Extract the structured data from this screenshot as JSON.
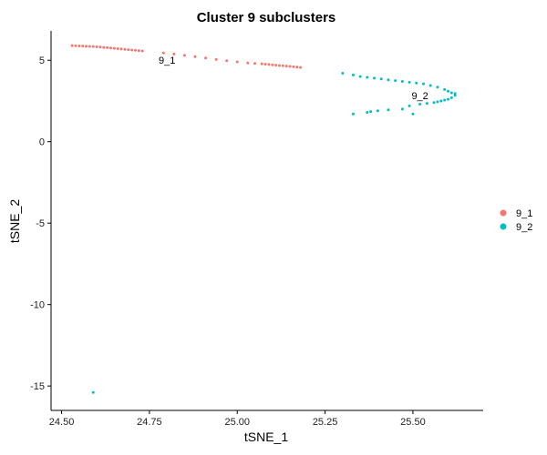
{
  "chart_data": {
    "type": "scatter",
    "title": "Cluster 9  subclusters",
    "xlabel": "tSNE_1",
    "ylabel": "tSNE_2",
    "xlim": [
      24.47,
      25.7
    ],
    "ylim": [
      -16.5,
      6.8
    ],
    "x_ticks": [
      24.5,
      24.75,
      25.0,
      25.25,
      25.5
    ],
    "x_tick_labels": [
      "24.50",
      "24.75",
      "25.00",
      "25.25",
      "25.50"
    ],
    "y_ticks": [
      5,
      0,
      -5,
      -10,
      -15
    ],
    "y_tick_labels": [
      "5",
      "0",
      "-5",
      "-10",
      "-15"
    ],
    "grid": false,
    "legend_position": "right",
    "series": [
      {
        "name": "9_1",
        "color": "#F8766D",
        "label_at": [
          24.8,
          4.8
        ],
        "x": [
          24.53,
          24.54,
          24.55,
          24.56,
          24.57,
          24.58,
          24.59,
          24.6,
          24.61,
          24.62,
          24.63,
          24.64,
          24.65,
          24.66,
          24.67,
          24.68,
          24.69,
          24.7,
          24.71,
          24.72,
          24.73,
          24.79,
          24.82,
          24.85,
          24.88,
          24.91,
          24.94,
          24.97,
          25.0,
          25.03,
          25.05,
          25.07,
          25.08,
          25.09,
          25.1,
          25.11,
          25.12,
          25.13,
          25.14,
          25.15,
          25.16,
          25.17,
          25.18
        ],
        "y": [
          5.9,
          5.89,
          5.88,
          5.87,
          5.86,
          5.85,
          5.84,
          5.83,
          5.81,
          5.79,
          5.77,
          5.75,
          5.73,
          5.71,
          5.69,
          5.67,
          5.65,
          5.63,
          5.61,
          5.59,
          5.57,
          5.45,
          5.38,
          5.3,
          5.22,
          5.14,
          5.05,
          4.97,
          4.9,
          4.84,
          4.8,
          4.78,
          4.76,
          4.74,
          4.72,
          4.7,
          4.68,
          4.66,
          4.64,
          4.62,
          4.6,
          4.58,
          4.56
        ]
      },
      {
        "name": "9_2",
        "color": "#00BFC4",
        "label_at": [
          25.52,
          2.6
        ],
        "x": [
          25.3,
          25.33,
          25.35,
          25.37,
          25.39,
          25.41,
          25.43,
          25.45,
          25.47,
          25.49,
          25.51,
          25.53,
          25.55,
          25.57,
          25.59,
          25.6,
          25.61,
          25.62,
          25.62,
          25.61,
          25.6,
          25.59,
          25.58,
          25.57,
          25.56,
          25.54,
          25.52,
          25.49,
          25.5,
          25.47,
          25.43,
          25.4,
          25.38,
          25.37,
          25.33,
          24.59
        ],
        "y": [
          4.2,
          4.1,
          4.0,
          3.95,
          3.9,
          3.85,
          3.8,
          3.75,
          3.7,
          3.65,
          3.6,
          3.55,
          3.45,
          3.35,
          3.2,
          3.1,
          3.0,
          2.95,
          2.85,
          2.7,
          2.6,
          2.55,
          2.5,
          2.45,
          2.4,
          2.35,
          2.3,
          2.2,
          1.7,
          2.0,
          1.95,
          1.9,
          1.85,
          1.8,
          1.7,
          -15.4
        ]
      }
    ]
  }
}
